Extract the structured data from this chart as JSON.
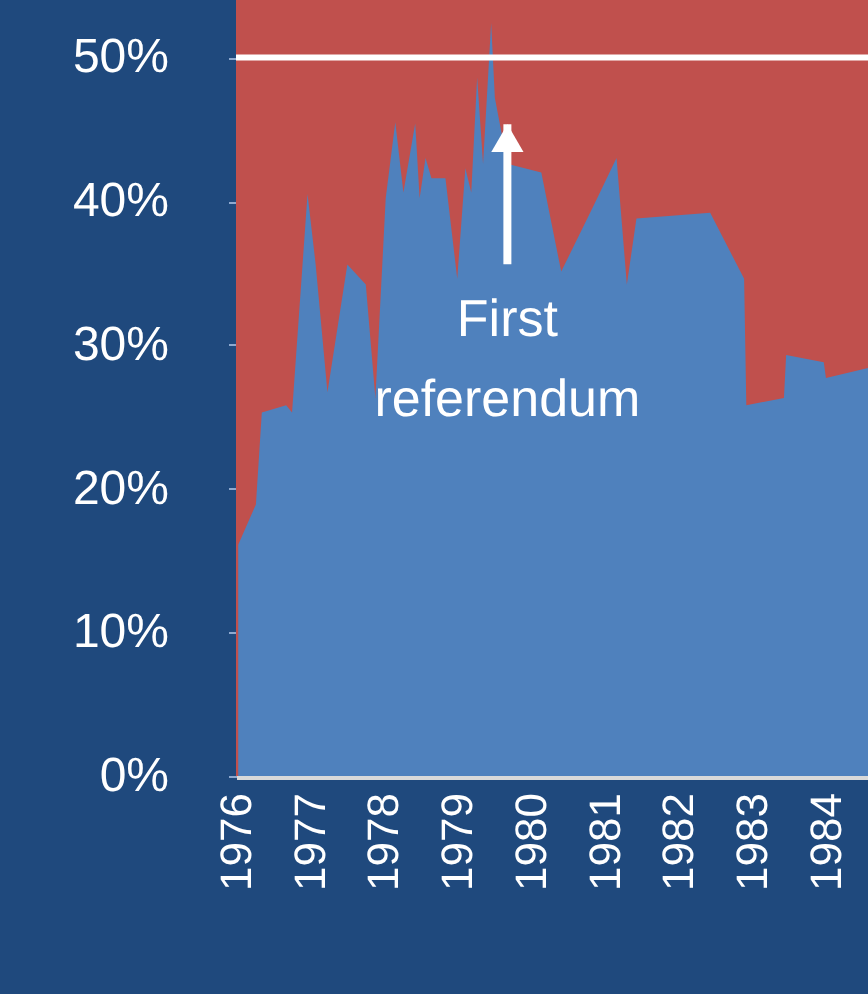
{
  "chart_data": {
    "type": "area",
    "x": [
      1976.03,
      1976.27,
      1976.35,
      1976.68,
      1976.76,
      1976.97,
      1977.08,
      1977.24,
      1977.51,
      1977.76,
      1977.89,
      1978.03,
      1978.16,
      1978.27,
      1978.43,
      1978.49,
      1978.57,
      1978.65,
      1978.84,
      1979.0,
      1979.11,
      1979.19,
      1979.27,
      1979.35,
      1979.46,
      1979.51,
      1979.68,
      1980.14,
      1980.41,
      1980.86,
      1981.16,
      1981.3,
      1981.43,
      1982.43,
      1982.89,
      1982.92,
      1983.43,
      1983.46,
      1983.97,
      1984.0,
      1984.57
    ],
    "series": [
      {
        "color": "#4f81bd",
        "values": [
          16.1,
          18.9,
          25.3,
          25.8,
          25.3,
          40.5,
          35.6,
          26.7,
          35.6,
          34.2,
          26.3,
          40.2,
          45.5,
          40.6,
          45.4,
          40.2,
          43.0,
          41.6,
          41.6,
          34.6,
          42.3,
          40.6,
          48.6,
          42.6,
          52.4,
          47.2,
          42.6,
          42.0,
          35.1,
          39.8,
          43.0,
          34.2,
          38.8,
          39.2,
          34.6,
          25.8,
          26.3,
          29.3,
          28.8,
          27.7,
          28.4
        ]
      }
    ],
    "xlim": [
      1976,
      1984.57
    ],
    "xticks": [
      1976,
      1977,
      1978,
      1979,
      1980,
      1981,
      1982,
      1983,
      1984
    ],
    "ylim": [
      0,
      54
    ],
    "yticks": [
      {
        "value": 0,
        "label": "0%"
      },
      {
        "value": 10,
        "label": "10%"
      },
      {
        "value": 20,
        "label": "20%"
      },
      {
        "value": 30,
        "label": "30%"
      },
      {
        "value": 40,
        "label": "40%"
      },
      {
        "value": 50,
        "label": "50%"
      }
    ],
    "ref_lines": [
      {
        "axis": "y",
        "value": 50,
        "color": "#ffffff"
      }
    ],
    "bands": [
      {
        "axis": "y",
        "from": 0,
        "to": 54,
        "color": "#c0504d"
      }
    ],
    "annotations": [
      {
        "text": "First referendum",
        "x": 1979.68,
        "y": 45.5
      }
    ]
  }
}
